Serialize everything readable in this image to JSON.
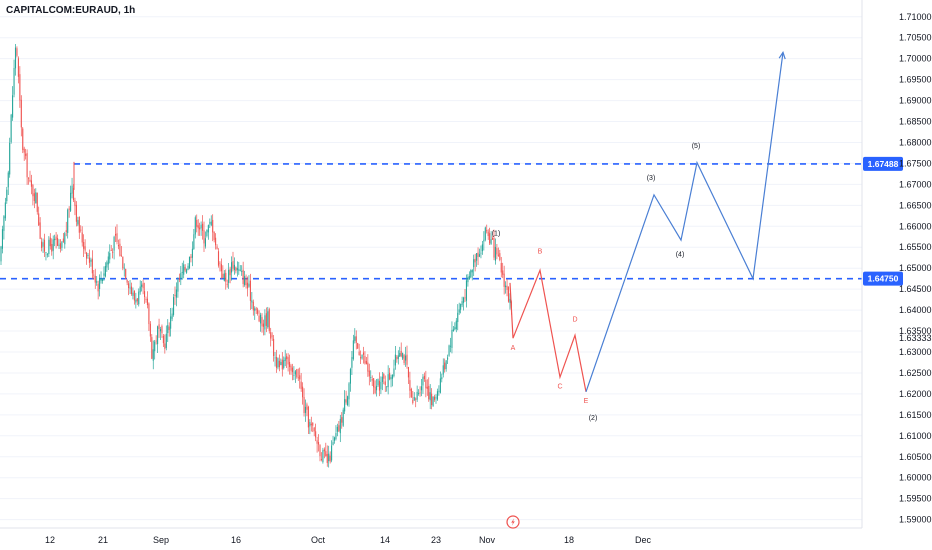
{
  "header": {
    "symbol": "CAPITALCOM:EURAUD, 1h"
  },
  "colors": {
    "up": "#26a69a",
    "down": "#ef5350",
    "level": "#2962ff",
    "path_bear": "#ef5350",
    "path_bull": "#4a7fd4",
    "label_dark": "#131722",
    "label_red": "#ef5350",
    "grid": "#f0f3fa"
  },
  "chart_data": {
    "type": "candlestick",
    "y_axis": {
      "range": [
        1.588,
        1.714
      ],
      "ticks": [
        "1.71000",
        "1.70500",
        "1.70000",
        "1.69500",
        "1.69000",
        "1.68500",
        "1.68000",
        "1.67500",
        "1.67000",
        "1.66500",
        "1.66000",
        "1.65500",
        "1.65000",
        "1.64500",
        "1.64000",
        "1.63500",
        "1.63000",
        "1.62500",
        "1.62000",
        "1.61500",
        "1.61000",
        "1.60500",
        "1.60000",
        "1.59500",
        "1.59000"
      ]
    },
    "extra_ticks": [
      "1.63333"
    ],
    "x_axis": {
      "ticks": [
        "12",
        "21",
        "Sep",
        "16",
        "Oct",
        "14",
        "23",
        "Nov",
        "18",
        "Dec"
      ]
    },
    "levels": [
      {
        "label": "1.67488",
        "value": 1.67488
      },
      {
        "label": "1.64750",
        "value": 1.6475
      }
    ],
    "price_series": [
      [
        0,
        1.651
      ],
      [
        8,
        1.6735
      ],
      [
        16,
        1.705
      ],
      [
        22,
        1.68
      ],
      [
        30,
        1.6695
      ],
      [
        36,
        1.667
      ],
      [
        42,
        1.6545
      ],
      [
        48,
        1.655
      ],
      [
        56,
        1.656
      ],
      [
        60,
        1.6535
      ],
      [
        66,
        1.659
      ],
      [
        72,
        1.6705
      ],
      [
        78,
        1.66
      ],
      [
        84,
        1.6555
      ],
      [
        92,
        1.6505
      ],
      [
        98,
        1.646
      ],
      [
        104,
        1.6495
      ],
      [
        110,
        1.654
      ],
      [
        116,
        1.657
      ],
      [
        124,
        1.6505
      ],
      [
        134,
        1.6425
      ],
      [
        142,
        1.6445
      ],
      [
        148,
        1.6395
      ],
      [
        152,
        1.6295
      ],
      [
        158,
        1.6355
      ],
      [
        164,
        1.6315
      ],
      [
        170,
        1.6375
      ],
      [
        176,
        1.6455
      ],
      [
        184,
        1.6495
      ],
      [
        190,
        1.6525
      ],
      [
        196,
        1.662
      ],
      [
        204,
        1.6575
      ],
      [
        212,
        1.661
      ],
      [
        218,
        1.6525
      ],
      [
        226,
        1.6465
      ],
      [
        232,
        1.6515
      ],
      [
        238,
        1.6495
      ],
      [
        244,
        1.6475
      ],
      [
        250,
        1.644
      ],
      [
        256,
        1.6395
      ],
      [
        262,
        1.6365
      ],
      [
        268,
        1.6385
      ],
      [
        274,
        1.6295
      ],
      [
        280,
        1.6255
      ],
      [
        286,
        1.6305
      ],
      [
        292,
        1.6235
      ],
      [
        298,
        1.6255
      ],
      [
        304,
        1.6165
      ],
      [
        310,
        1.6125
      ],
      [
        316,
        1.6095
      ],
      [
        322,
        1.6055
      ],
      [
        328,
        1.6035
      ],
      [
        334,
        1.6085
      ],
      [
        340,
        1.6125
      ],
      [
        348,
        1.6215
      ],
      [
        354,
        1.6325
      ],
      [
        362,
        1.6295
      ],
      [
        368,
        1.6255
      ],
      [
        374,
        1.6205
      ],
      [
        380,
        1.6225
      ],
      [
        388,
        1.6235
      ],
      [
        394,
        1.6265
      ],
      [
        400,
        1.6315
      ],
      [
        406,
        1.6275
      ],
      [
        412,
        1.6165
      ],
      [
        418,
        1.6205
      ],
      [
        424,
        1.6245
      ],
      [
        432,
        1.6175
      ],
      [
        438,
        1.6215
      ],
      [
        444,
        1.6265
      ],
      [
        452,
        1.6345
      ],
      [
        458,
        1.6395
      ],
      [
        464,
        1.6435
      ],
      [
        470,
        1.6485
      ],
      [
        476,
        1.6535
      ],
      [
        482,
        1.6555
      ],
      [
        486,
        1.6595
      ],
      [
        492,
        1.6555
      ],
      [
        500,
        1.6505
      ],
      [
        506,
        1.6455
      ],
      [
        510,
        1.6415
      ],
      [
        514,
        1.6365
      ]
    ],
    "bearish_path": {
      "points": [
        [
          510,
          1.6465
        ],
        [
          513,
          1.6333
        ],
        [
          540,
          1.6495
        ],
        [
          560,
          1.624
        ],
        [
          575,
          1.634
        ],
        [
          586,
          1.6205
        ]
      ],
      "labels": [
        {
          "id": "A",
          "text": "A",
          "x": 513,
          "y": 1.6305
        },
        {
          "id": "B",
          "text": "B",
          "x": 540,
          "y": 1.6535
        },
        {
          "id": "C",
          "text": "C",
          "x": 560,
          "y": 1.6213
        },
        {
          "id": "D",
          "text": "D",
          "x": 575,
          "y": 1.6373
        },
        {
          "id": "E",
          "text": "E",
          "x": 586,
          "y": 1.6178
        }
      ]
    },
    "bullish_path": {
      "points": [
        [
          586,
          1.6205
        ],
        [
          654,
          1.6675
        ],
        [
          681,
          1.6567
        ],
        [
          697,
          1.6752
        ],
        [
          753,
          1.6475
        ],
        [
          783,
          1.7015
        ]
      ],
      "labels": [
        {
          "id": "w1",
          "text": "(1)",
          "x": 496,
          "y": 1.6578
        },
        {
          "id": "w2",
          "text": "(2)",
          "x": 593,
          "y": 1.6138
        },
        {
          "id": "w3",
          "text": "(3)",
          "x": 651,
          "y": 1.671
        },
        {
          "id": "w4",
          "text": "(4)",
          "x": 680,
          "y": 1.6528
        },
        {
          "id": "w5",
          "text": "(5)",
          "x": 696,
          "y": 1.6787
        }
      ]
    }
  }
}
